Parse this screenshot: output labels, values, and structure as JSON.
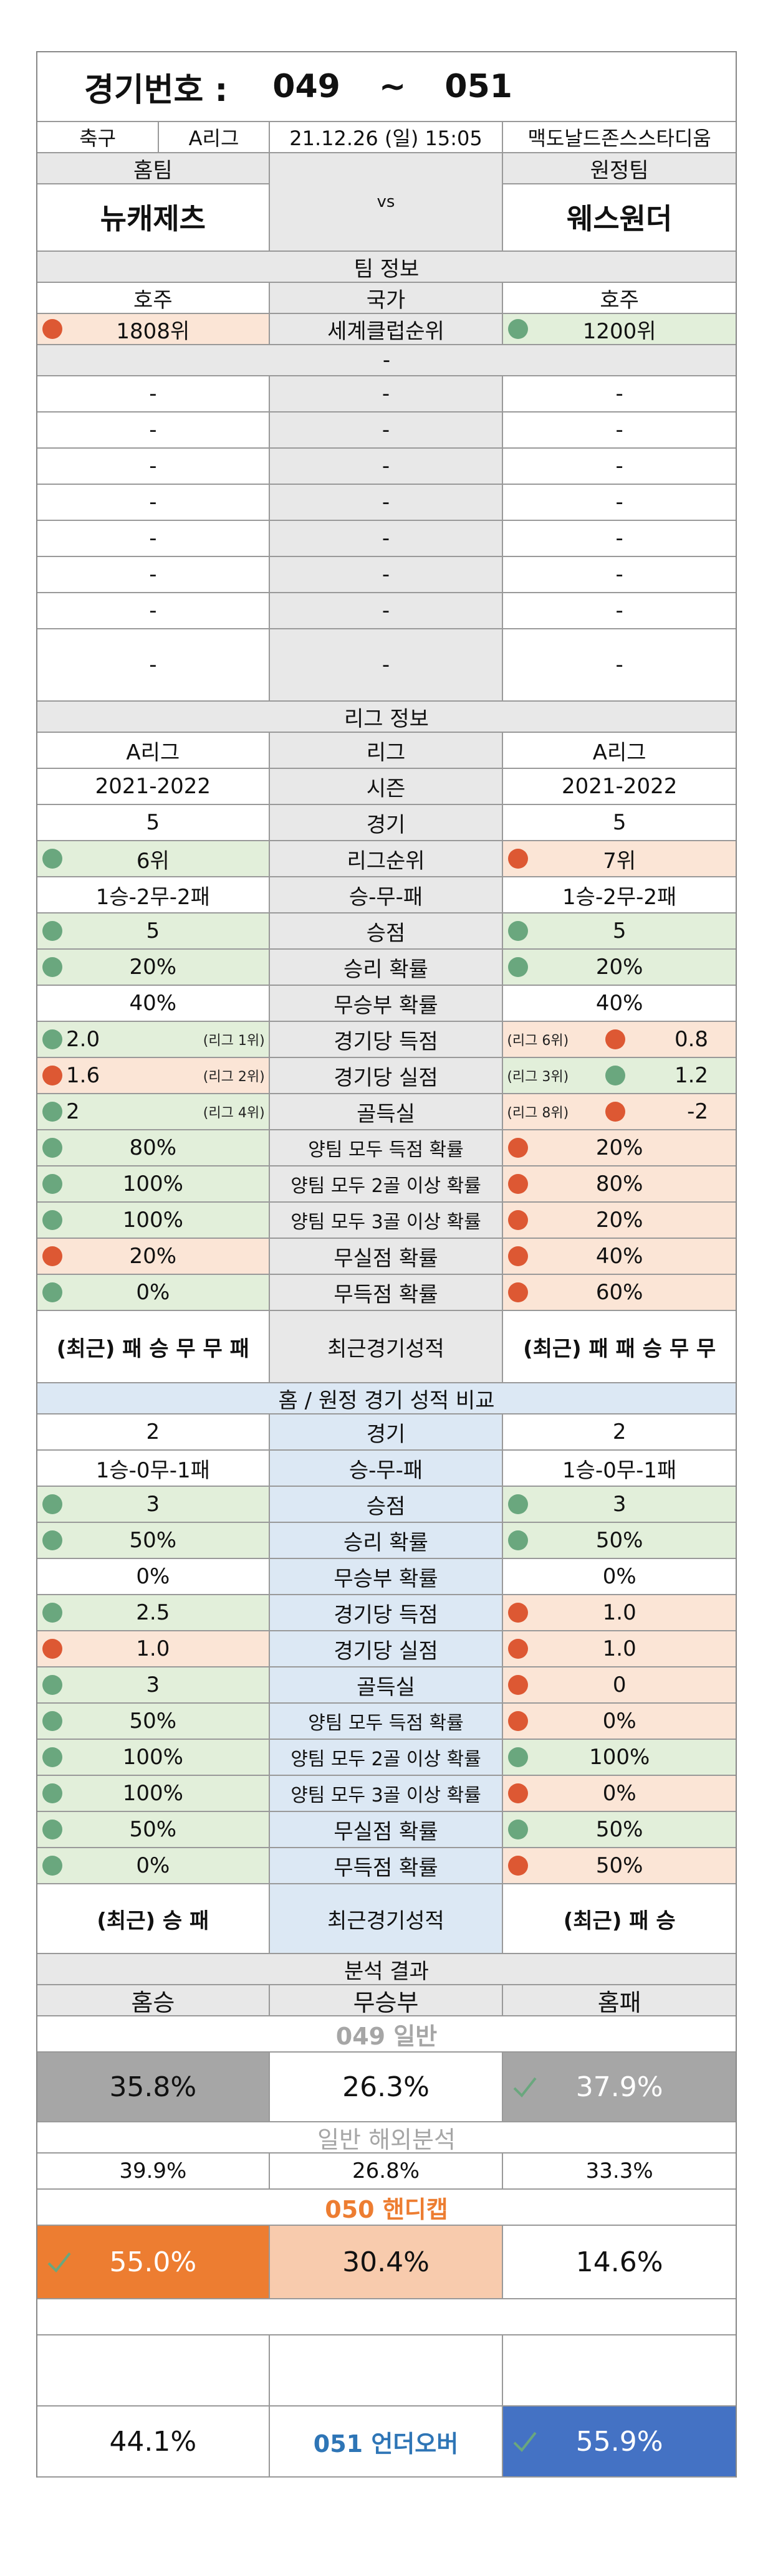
{
  "header": {
    "title": "경기번호 :",
    "num_from": "049",
    "tilde": "~",
    "num_to": "051"
  },
  "match": {
    "sport": "축구",
    "league": "A리그",
    "datetime": "21.12.26 (일) 15:05",
    "venue": "맥도날드존스스타디움"
  },
  "teams": {
    "home_label": "홈팀",
    "away_label": "원정팀",
    "vs": "vs",
    "home": "뉴캐제츠",
    "away": "웨스원더"
  },
  "team_info": {
    "title": "팀 정보",
    "country_label": "국가",
    "home_country": "호주",
    "away_country": "호주",
    "rank_label": "세계클럽순위",
    "home_rank": "1808위",
    "away_rank": "1200위",
    "sep": "-",
    "dash": "-"
  },
  "league_info": {
    "title": "리그 정보",
    "rows": [
      {
        "label": "리그",
        "home": "A리그",
        "away": "A리그"
      },
      {
        "label": "시즌",
        "home": "2021-2022",
        "away": "2021-2022"
      },
      {
        "label": "경기",
        "home": "5",
        "away": "5"
      },
      {
        "label": "리그순위",
        "home": "6위",
        "away": "7위",
        "hc": "g",
        "ac": "r"
      },
      {
        "label": "승-무-패",
        "home": "1승-2무-2패",
        "away": "1승-2무-2패"
      },
      {
        "label": "승점",
        "home": "5",
        "away": "5",
        "hc": "g",
        "ac": "g"
      },
      {
        "label": "승리 확률",
        "home": "20%",
        "away": "20%",
        "hc": "g",
        "ac": "g"
      },
      {
        "label": "무승부 확률",
        "home": "40%",
        "away": "40%"
      },
      {
        "label": "경기당 득점",
        "home": "2.0",
        "away": "0.8",
        "hc": "g",
        "ac": "r",
        "hs": "(리그 1위)",
        "as": "(리그 6위)"
      },
      {
        "label": "경기당 실점",
        "home": "1.6",
        "away": "1.2",
        "hc": "r",
        "ac": "g",
        "hs": "(리그 2위)",
        "as": "(리그 3위)"
      },
      {
        "label": "골득실",
        "home": "2",
        "away": "-2",
        "hc": "g",
        "ac": "r",
        "hs": "(리그 4위)",
        "as": "(리그 8위)"
      },
      {
        "label": "양팀 모두 득점 확률",
        "home": "80%",
        "away": "20%",
        "hc": "g",
        "ac": "r"
      },
      {
        "label": "양팀 모두 2골 이상 확률",
        "home": "100%",
        "away": "80%",
        "hc": "g",
        "ac": "r"
      },
      {
        "label": "양팀 모두 3골 이상 확률",
        "home": "100%",
        "away": "20%",
        "hc": "g",
        "ac": "r"
      },
      {
        "label": "무실점 확률",
        "home": "20%",
        "away": "40%",
        "hc": "r",
        "ac": "r"
      },
      {
        "label": "무득점 확률",
        "home": "0%",
        "away": "60%",
        "hc": "g",
        "ac": "r"
      }
    ],
    "recent": {
      "label": "최근경기성적",
      "home": "(최근) 패 승 무 무 패",
      "away": "(최근) 패 패 승 무 무"
    }
  },
  "compare": {
    "title": "홈 / 원정 경기 성적 비교",
    "rows": [
      {
        "label": "경기",
        "home": "2",
        "away": "2"
      },
      {
        "label": "승-무-패",
        "home": "1승-0무-1패",
        "away": "1승-0무-1패"
      },
      {
        "label": "승점",
        "home": "3",
        "away": "3",
        "hc": "g",
        "ac": "g"
      },
      {
        "label": "승리 확률",
        "home": "50%",
        "away": "50%",
        "hc": "g",
        "ac": "g"
      },
      {
        "label": "무승부 확률",
        "home": "0%",
        "away": "0%"
      },
      {
        "label": "경기당 득점",
        "home": "2.5",
        "away": "1.0",
        "hc": "g",
        "ac": "r"
      },
      {
        "label": "경기당 실점",
        "home": "1.0",
        "away": "1.0",
        "hc": "r",
        "ac": "r"
      },
      {
        "label": "골득실",
        "home": "3",
        "away": "0",
        "hc": "g",
        "ac": "r"
      },
      {
        "label": "양팀 모두 득점 확률",
        "home": "50%",
        "away": "0%",
        "hc": "g",
        "ac": "r"
      },
      {
        "label": "양팀 모두 2골 이상 확률",
        "home": "100%",
        "away": "100%",
        "hc": "g",
        "ac": "g"
      },
      {
        "label": "양팀 모두 3골 이상 확률",
        "home": "100%",
        "away": "0%",
        "hc": "g",
        "ac": "r"
      },
      {
        "label": "무실점 확률",
        "home": "50%",
        "away": "50%",
        "hc": "g",
        "ac": "g"
      },
      {
        "label": "무득점 확률",
        "home": "0%",
        "away": "50%",
        "hc": "g",
        "ac": "r"
      }
    ],
    "recent": {
      "label": "최근경기성적",
      "home": "(최근) 승 패",
      "away": "(최근) 패 승"
    }
  },
  "analysis": {
    "title": "분석 결과",
    "home_win": "홈승",
    "draw": "무승부",
    "home_loss": "홈패",
    "s049": {
      "title": "049 일반",
      "home": "35.8%",
      "draw": "26.3%",
      "away": "37.9%"
    },
    "overseas": {
      "title": "일반 해외분석",
      "home": "39.9%",
      "draw": "26.8%",
      "away": "33.3%"
    },
    "s050": {
      "title": "050 핸디캡",
      "home": "55.0%",
      "draw": "30.4%",
      "away": "14.6%"
    },
    "s051": {
      "title": "051 언더오버",
      "under": "44.1%",
      "over": "55.9%"
    }
  },
  "colors": {
    "green_dot": "#6aa77e",
    "red_dot": "#dd5833",
    "gray_header": "#e8e8e8",
    "blue_header": "#dce8f4",
    "green_bg": "#e2efda",
    "red_bg": "#fbe5d6",
    "orange_hl": "#ed7d31",
    "peach": "#f8cbad",
    "blue_hl": "#4472c4",
    "gray_hl": "#a6a6a6",
    "check": "check-icon"
  }
}
